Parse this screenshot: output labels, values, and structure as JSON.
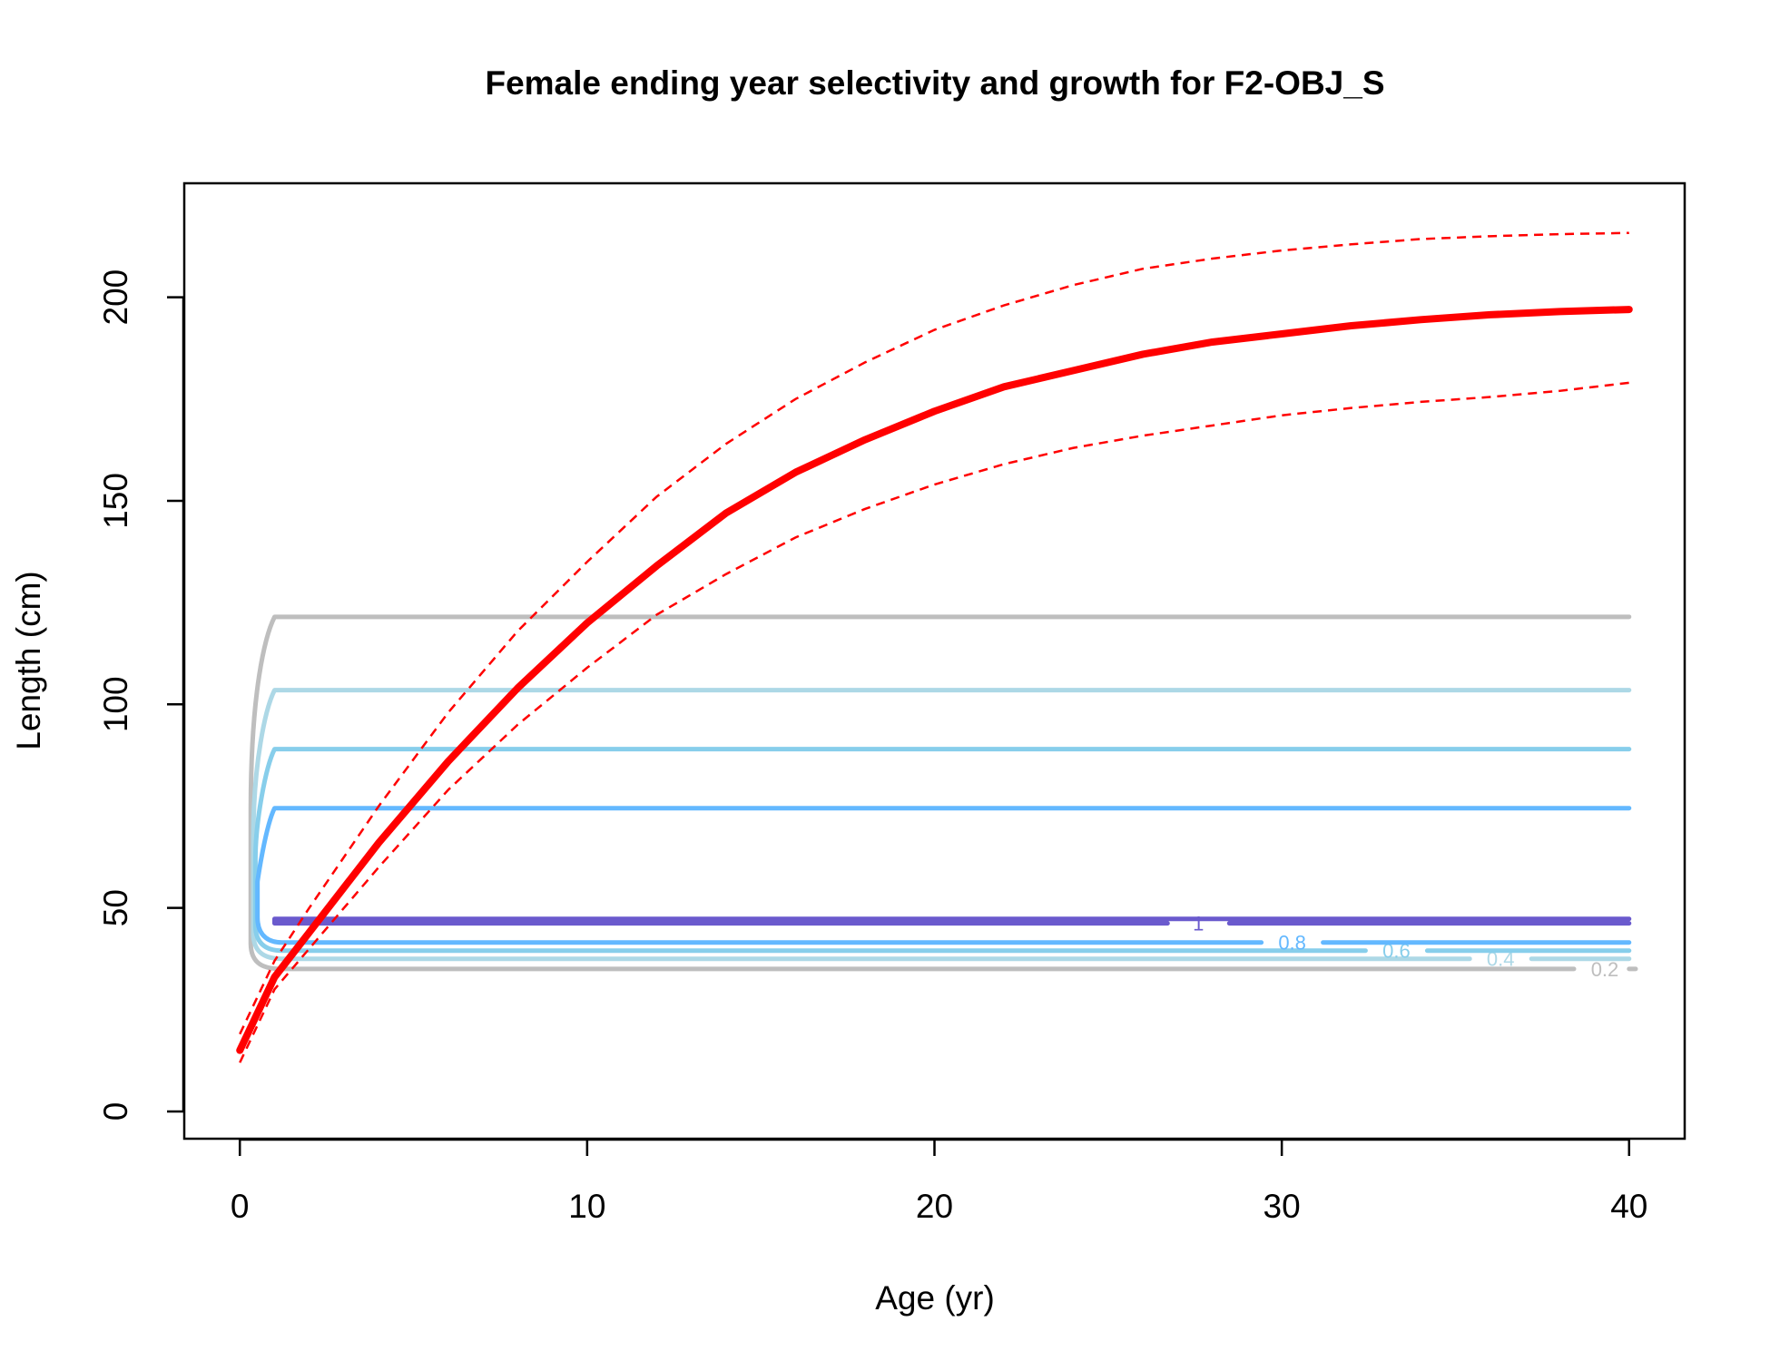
{
  "chart_data": {
    "type": "line",
    "title": "Female ending year selectivity and growth for F2-OBJ_S",
    "xlabel": "Age (yr)",
    "ylabel": "Length (cm)",
    "xlim": [
      -1.6,
      41.6
    ],
    "ylim": [
      -6.7,
      228
    ],
    "xticks": [
      0,
      10,
      20,
      30,
      40
    ],
    "yticks": [
      0,
      50,
      100,
      150,
      200
    ],
    "grid": false,
    "legend": "none",
    "growth": {
      "color": "#ff0000",
      "age": [
        0,
        1,
        2,
        4,
        6,
        8,
        10,
        12,
        14,
        16,
        18,
        20,
        22,
        24,
        26,
        28,
        30,
        32,
        34,
        36,
        38,
        40
      ],
      "mean": [
        15,
        33,
        44,
        66,
        86,
        104,
        120,
        134,
        147,
        157,
        165,
        172,
        178,
        182,
        186,
        189,
        191,
        193,
        194.5,
        195.7,
        196.5,
        197
      ],
      "upper": [
        19,
        37,
        50,
        75,
        98,
        118,
        135,
        151,
        164,
        175,
        184,
        192,
        198,
        203,
        207,
        209.5,
        211.5,
        213,
        214.3,
        215,
        215.5,
        215.8
      ],
      "lower": [
        12,
        30,
        40,
        60,
        79,
        95,
        109,
        122,
        132,
        141,
        148,
        154,
        159,
        163,
        166,
        168.5,
        171,
        172.8,
        174.3,
        175.5,
        177,
        179
      ]
    },
    "selectivity_contours": [
      {
        "level": "0.2",
        "color": "#bebebe",
        "length_low": 35,
        "length_high": 121.5,
        "label_age": 39.3
      },
      {
        "level": "0.4",
        "color": "#add8e6",
        "length_low": 37.5,
        "length_high": 103.5,
        "label_age": 36.3
      },
      {
        "level": "0.6",
        "color": "#87ceeb",
        "length_low": 39.5,
        "length_high": 89,
        "label_age": 33.3
      },
      {
        "level": "0.8",
        "color": "#63b8ff",
        "length_low": 41.5,
        "length_high": 74.5,
        "label_age": 30.3
      },
      {
        "level": "1",
        "color": "#6a5acd",
        "length_low": 46.2,
        "length_high": 47.3,
        "label_age": 27.6
      }
    ]
  }
}
